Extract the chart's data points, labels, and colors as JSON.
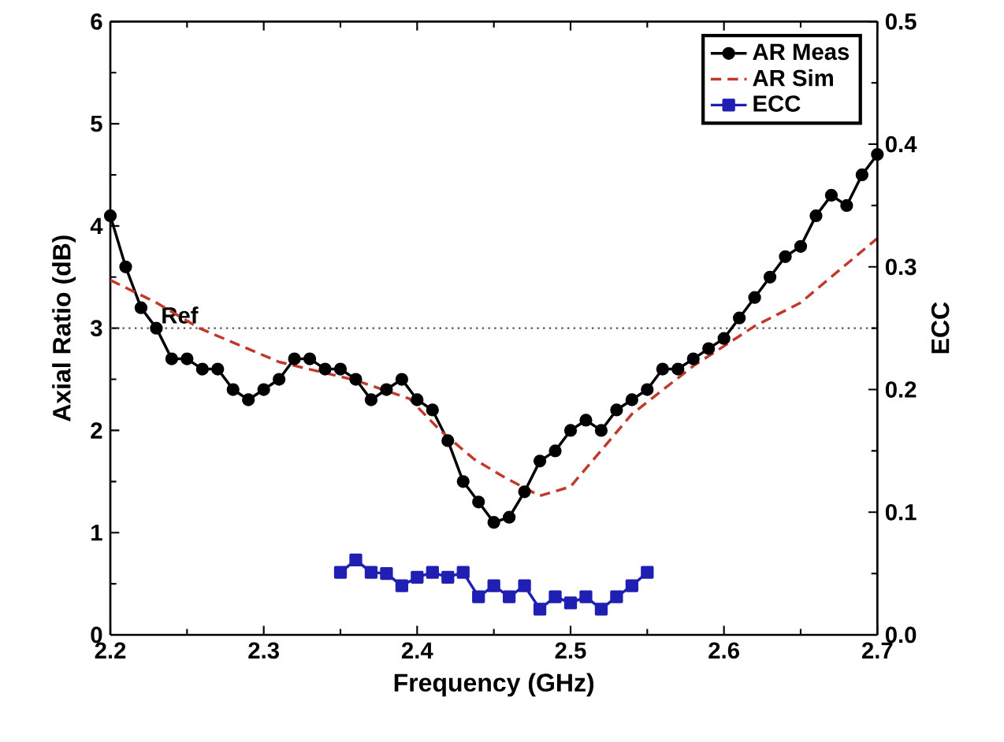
{
  "chart_data": {
    "type": "line",
    "xlabel": "Frequency (GHz)",
    "ylabel": "Axial Ratio (dB)",
    "y2label": "ECC",
    "series": [
      {
        "name": "AR Meas",
        "color": "#000000",
        "marker": "circle",
        "line_style": "solid",
        "x": [
          2.2,
          2.21,
          2.22,
          2.23,
          2.24,
          2.25,
          2.26,
          2.27,
          2.28,
          2.29,
          2.3,
          2.31,
          2.32,
          2.33,
          2.34,
          2.35,
          2.36,
          2.37,
          2.38,
          2.39,
          2.4,
          2.41,
          2.42,
          2.43,
          2.44,
          2.45,
          2.46,
          2.47,
          2.48,
          2.49,
          2.5,
          2.51,
          2.52,
          2.53,
          2.54,
          2.55,
          2.56,
          2.57,
          2.58,
          2.59,
          2.6,
          2.61,
          2.62,
          2.63,
          2.64,
          2.65,
          2.66,
          2.67,
          2.68,
          2.69,
          2.7
        ],
        "values": [
          4.1,
          3.6,
          3.2,
          3.0,
          2.7,
          2.7,
          2.6,
          2.6,
          2.4,
          2.3,
          2.4,
          2.5,
          2.7,
          2.7,
          2.6,
          2.6,
          2.5,
          2.3,
          2.4,
          2.5,
          2.3,
          2.2,
          1.9,
          1.5,
          1.3,
          1.1,
          1.15,
          1.4,
          1.7,
          1.8,
          2.0,
          2.1,
          2.0,
          2.2,
          2.3,
          2.4,
          2.6,
          2.6,
          2.7,
          2.8,
          2.9,
          3.1,
          3.3,
          3.5,
          3.7,
          3.8,
          4.1,
          4.3,
          4.2,
          4.5,
          4.7
        ]
      },
      {
        "name": "AR Sim",
        "color": "#c0392b",
        "marker": "none",
        "line_style": "dashed",
        "x": [
          2.2,
          2.23,
          2.258,
          2.31,
          2.36,
          2.395,
          2.415,
          2.437,
          2.457,
          2.48,
          2.5,
          2.54,
          2.58,
          2.62,
          2.65,
          2.7
        ],
        "values": [
          3.47,
          3.25,
          3.0,
          2.67,
          2.49,
          2.31,
          2.0,
          1.72,
          1.54,
          1.36,
          1.45,
          2.16,
          2.63,
          3.02,
          3.25,
          3.88
        ]
      },
      {
        "name": "ECC",
        "color": "#1f1fb4",
        "marker": "square",
        "line_style": "solid",
        "axis": "y2",
        "x": [
          2.35,
          2.36,
          2.37,
          2.38,
          2.39,
          2.4,
          2.41,
          2.42,
          2.43,
          2.44,
          2.45,
          2.46,
          2.47,
          2.48,
          2.49,
          2.5,
          2.51,
          2.52,
          2.53,
          2.54,
          2.55
        ],
        "values": [
          0.051,
          0.061,
          0.051,
          0.05,
          0.04,
          0.047,
          0.051,
          0.047,
          0.051,
          0.031,
          0.04,
          0.031,
          0.04,
          0.021,
          0.031,
          0.026,
          0.031,
          0.021,
          0.031,
          0.04,
          0.051
        ]
      }
    ],
    "xlim": [
      2.2,
      2.7
    ],
    "xticks": [
      2.2,
      2.3,
      2.4,
      2.5,
      2.6,
      2.7
    ],
    "ylim": [
      0,
      6
    ],
    "yticks": [
      0,
      1,
      2,
      3,
      4,
      5,
      6
    ],
    "y2lim": [
      0,
      0.5
    ],
    "y2ticks": [
      {
        "value": 0,
        "label": "0.0"
      },
      {
        "value": 0.1,
        "label": "0.1"
      },
      {
        "value": 0.2,
        "label": "0.2"
      },
      {
        "value": 0.3,
        "label": "0.3"
      },
      {
        "value": 0.4,
        "label": "0.4"
      },
      {
        "value": 0.5,
        "label": "0.5"
      }
    ],
    "ref_lines": [
      {
        "axis": "y",
        "value": 3,
        "label": "Ref",
        "color": "#555555",
        "line_style": "dotted"
      }
    ],
    "grid": false,
    "legend": "top right"
  }
}
